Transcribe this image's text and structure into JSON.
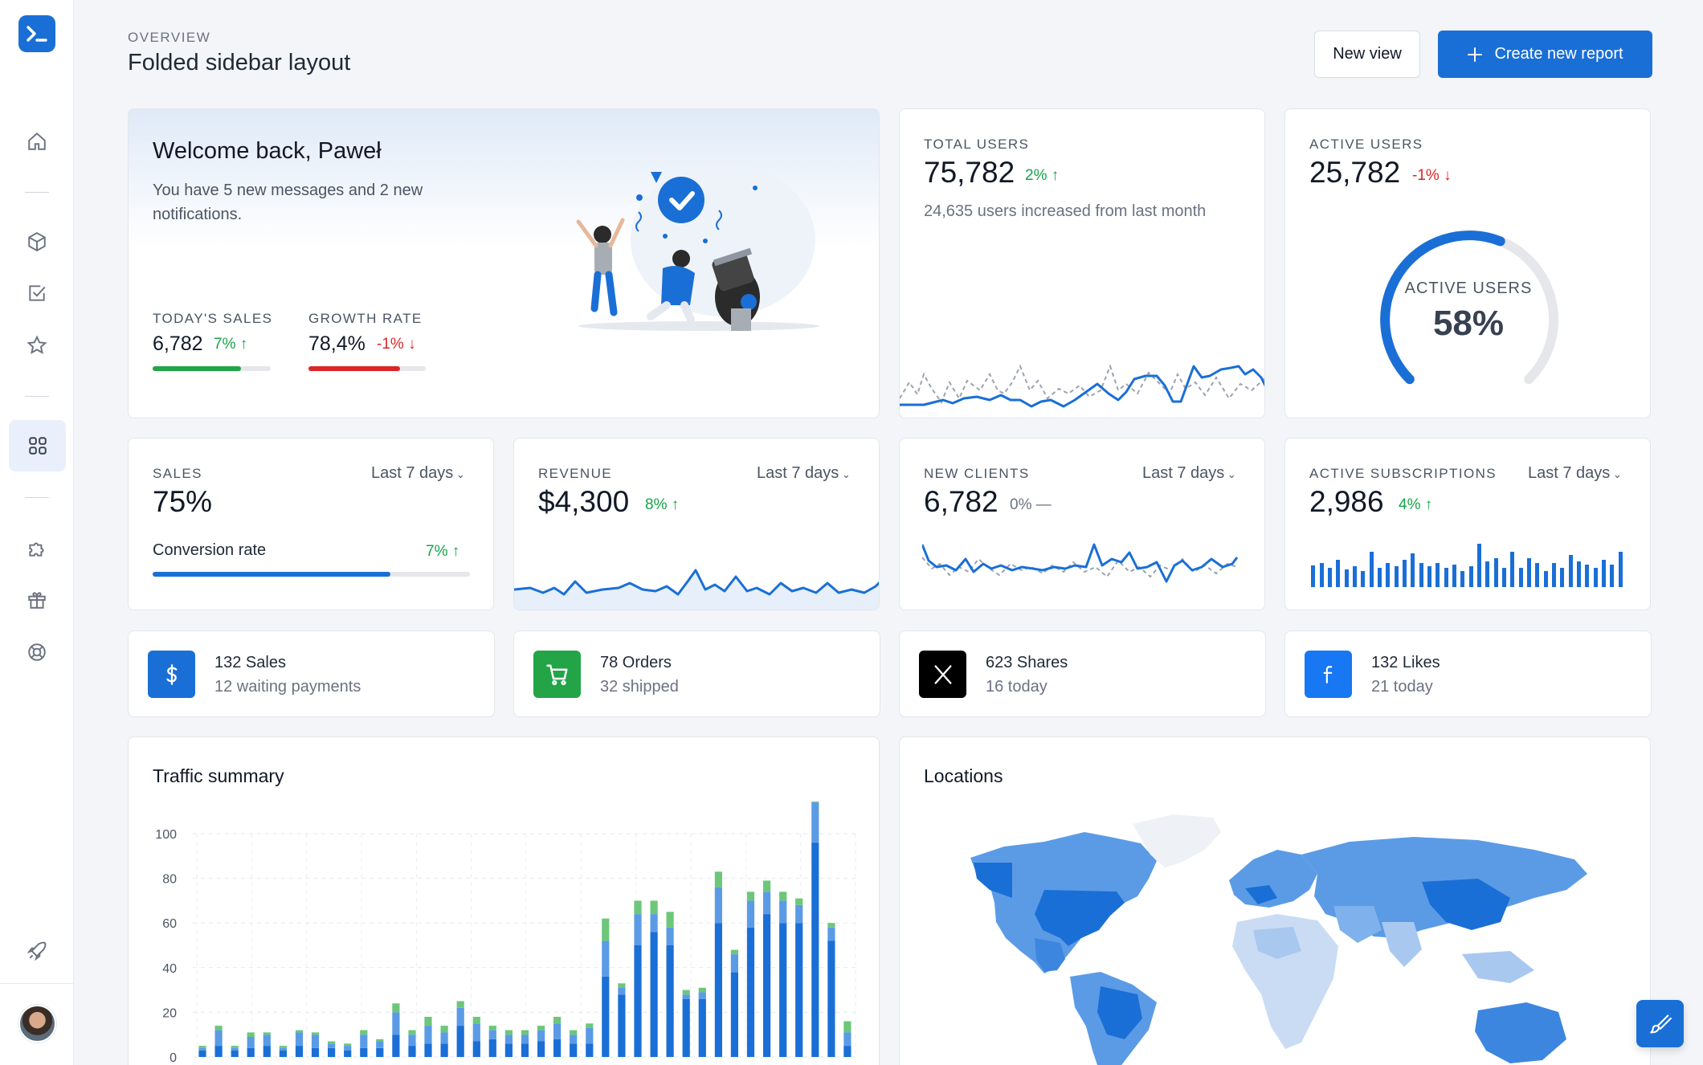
{
  "header": {
    "eyebrow": "OVERVIEW",
    "title": "Folded sidebar layout",
    "new_view_label": "New view",
    "create_label": "Create new report"
  },
  "sidebar": {
    "items": [
      {
        "name": "home-icon"
      },
      {
        "name": "box-icon"
      },
      {
        "name": "checkbox-icon"
      },
      {
        "name": "star-icon"
      },
      {
        "name": "grid-icon",
        "active": true
      },
      {
        "name": "puzzle-icon"
      },
      {
        "name": "gift-icon"
      },
      {
        "name": "lifebuoy-icon"
      },
      {
        "name": "rocket-icon"
      }
    ]
  },
  "welcome": {
    "title": "Welcome back, Paweł",
    "message": "You have 5 new messages and 2 new notifications.",
    "stats": [
      {
        "label": "TODAY'S SALES",
        "value": "6,782",
        "change": "7%",
        "direction": "up",
        "progress": 0.75,
        "color": "#22a447"
      },
      {
        "label": "GROWTH RATE",
        "value": "78,4%",
        "change": "-1%",
        "direction": "down",
        "progress": 0.78,
        "color": "#dc2626"
      }
    ]
  },
  "total_users": {
    "label": "TOTAL USERS",
    "value": "75,782",
    "change": "2%",
    "direction": "up",
    "note": "24,635 users increased from last month"
  },
  "active_users": {
    "label": "ACTIVE USERS",
    "value": "25,782",
    "change": "-1%",
    "direction": "down",
    "gauge_label": "ACTIVE USERS",
    "gauge_value": "58%",
    "gauge_fraction": 0.58
  },
  "kpis": [
    {
      "label": "SALES",
      "range": "Last 7 days",
      "value": "75%",
      "change": "",
      "subtitle": "Conversion rate",
      "sub_change": "7%",
      "progress": 0.75
    },
    {
      "label": "REVENUE",
      "range": "Last 7 days",
      "value": "$4,300",
      "change": "8%",
      "direction": "up"
    },
    {
      "label": "NEW CLIENTS",
      "range": "Last 7 days",
      "value": "6,782",
      "change": "0%",
      "direction": "flat"
    },
    {
      "label": "ACTIVE SUBSCRIPTIONS",
      "range": "Last 7 days",
      "value": "2,986",
      "change": "4%",
      "direction": "up"
    }
  ],
  "mini_cards": [
    {
      "title": "132 Sales",
      "sub": "12 waiting payments",
      "icon": "dollar-icon",
      "color": "#1a6fd6"
    },
    {
      "title": "78 Orders",
      "sub": "32 shipped",
      "icon": "cart-icon",
      "color": "#22a447"
    },
    {
      "title": "623 Shares",
      "sub": "16 today",
      "icon": "x-logo-icon",
      "color": "#000000"
    },
    {
      "title": "132 Likes",
      "sub": "21 today",
      "icon": "facebook-icon",
      "color": "#1877f2"
    }
  ],
  "traffic": {
    "title": "Traffic summary"
  },
  "locations": {
    "title": "Locations"
  },
  "chart_data": {
    "type": "bar",
    "title": "Traffic summary",
    "ylim": [
      0,
      100
    ],
    "yticks": [
      0,
      20,
      40,
      60,
      80,
      100
    ],
    "grid": true,
    "series": [
      {
        "values": [
          3,
          5,
          3,
          4,
          5,
          3,
          5,
          4,
          4,
          3,
          4,
          4,
          10,
          5,
          6,
          6,
          14,
          7,
          8,
          6,
          6,
          7,
          8,
          6,
          6,
          36,
          28,
          50,
          56,
          50,
          26,
          26,
          60,
          38,
          58,
          64,
          60,
          60,
          96,
          52,
          5
        ],
        "color": "#1a6fd6"
      },
      {
        "values": [
          1,
          7,
          1,
          5,
          5,
          1,
          6,
          6,
          2,
          2,
          6,
          3,
          10,
          5,
          8,
          5,
          8,
          8,
          4,
          4,
          4,
          5,
          7,
          4,
          7,
          16,
          3,
          14,
          8,
          8,
          2,
          3,
          16,
          8,
          12,
          10,
          10,
          8,
          18,
          6,
          6
        ],
        "color": "#5b9be6"
      },
      {
        "values": [
          1,
          2,
          1,
          2,
          1,
          1,
          1,
          1,
          1,
          1,
          2,
          1,
          4,
          2,
          4,
          3,
          3,
          3,
          2,
          2,
          2,
          2,
          3,
          2,
          2,
          10,
          2,
          6,
          6,
          7,
          2,
          2,
          7,
          2,
          4,
          5,
          4,
          3,
          7,
          2,
          5
        ],
        "color": "#6cc77a"
      }
    ]
  }
}
